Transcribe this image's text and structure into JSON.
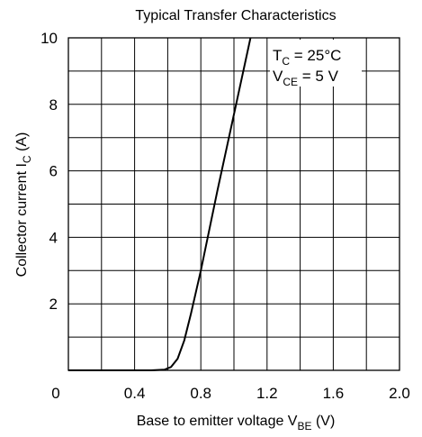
{
  "chart_data": {
    "type": "line",
    "title": "Typical Transfer Characteristics",
    "xlabel": {
      "main": "Base to emitter voltage  V",
      "sub": "BE",
      "unit": "  (V)"
    },
    "ylabel": {
      "main": "Collector current  I",
      "sub": "C",
      "unit": "  (A)"
    },
    "xlim": [
      0,
      2.0
    ],
    "ylim": [
      0,
      10
    ],
    "x_ticks": [
      "0",
      "0.4",
      "0.8",
      "1.2",
      "1.6",
      "2.0"
    ],
    "y_ticks": [
      "2",
      "4",
      "6",
      "8",
      "10"
    ],
    "grid": true,
    "annotation": {
      "line1": {
        "main": "T",
        "sub": "C",
        "rest": " = 25°C"
      },
      "line2": {
        "main": "V",
        "sub": "CE",
        "rest": " = 5 V"
      }
    },
    "series": [
      {
        "x": [
          0,
          0.5,
          0.58,
          0.62,
          0.66,
          0.7,
          0.74,
          0.8,
          0.9,
          1.0,
          1.1
        ],
        "y": [
          0,
          0,
          0.02,
          0.1,
          0.35,
          0.9,
          1.7,
          3.0,
          5.4,
          7.7,
          10
        ]
      }
    ]
  }
}
